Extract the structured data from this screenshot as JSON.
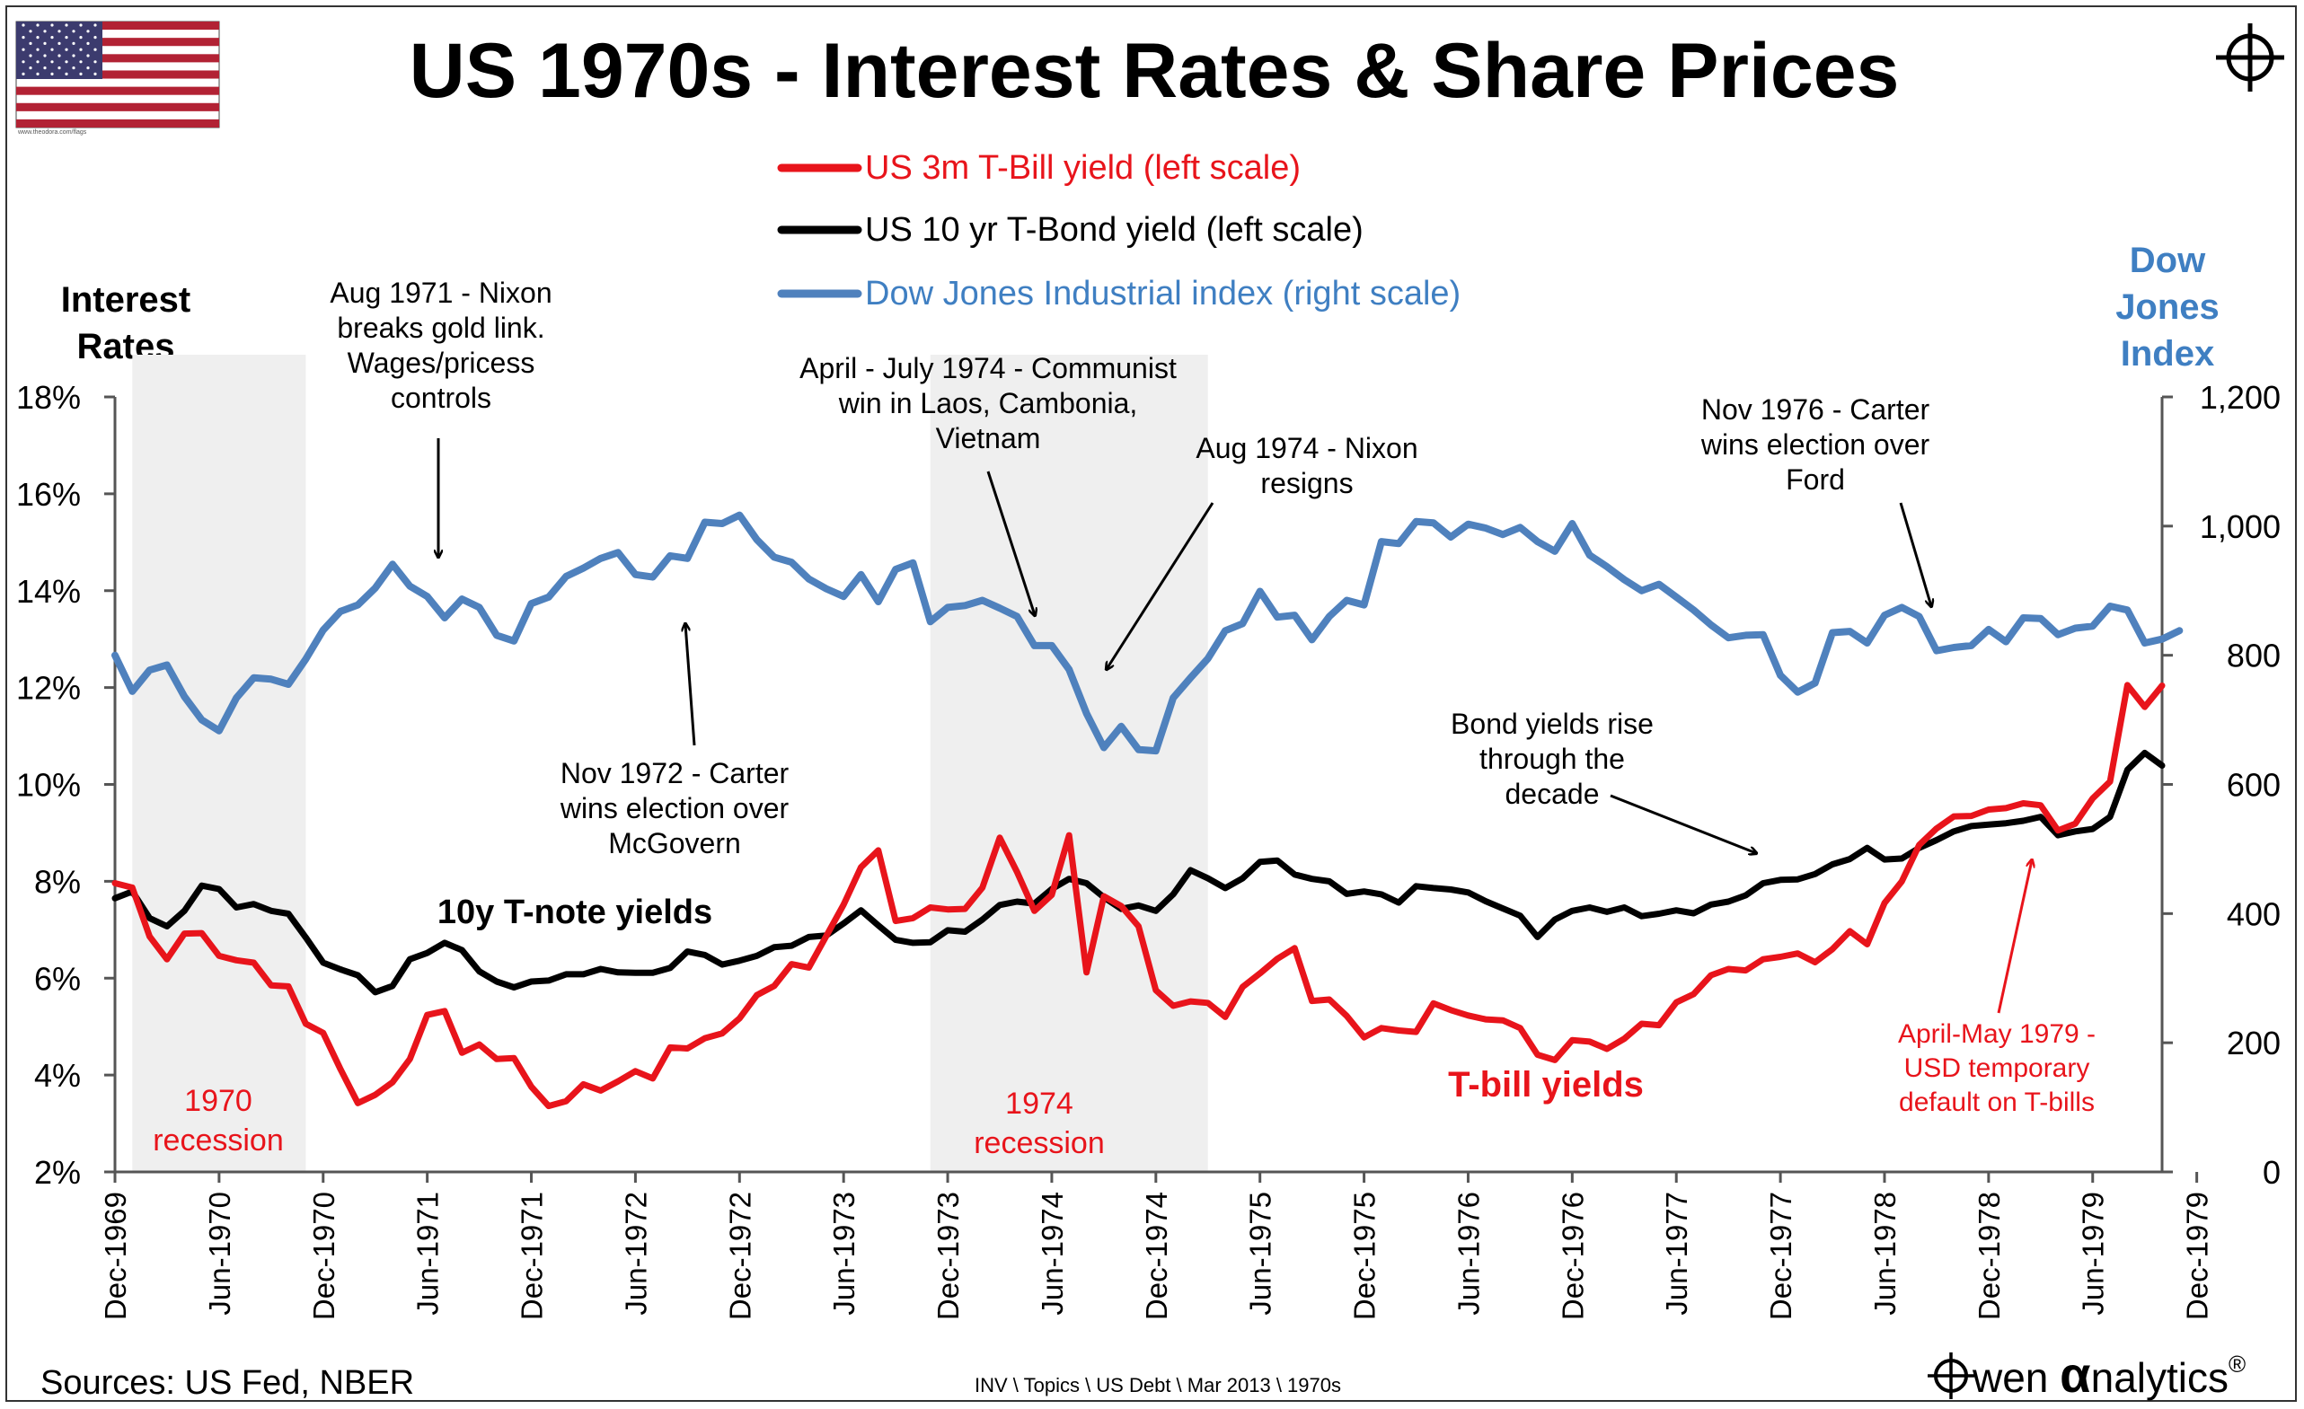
{
  "title": "US 1970s - Interest Rates & Share Prices",
  "left_axis_title": [
    "Interest",
    "Rates"
  ],
  "right_axis_title": [
    "Dow",
    "Jones",
    "Index"
  ],
  "flag_caption": "www.theodora.com/flags",
  "sources": "Sources: US Fed, NBER",
  "file_path": "INV \\ Topics \\ US Debt \\ Mar 2013 \\ 1970s",
  "brand": {
    "prefix": "wen ",
    "alpha": "α",
    "suffix": "nalytics",
    "reg": "®"
  },
  "colors": {
    "tbill": "#e8141b",
    "tbond": "#000000",
    "dow": "#4f81bd",
    "recession": "#efefef",
    "dow_label": "#3f7fc2"
  },
  "annotations": {
    "nixon_gold": [
      "Aug 1971 - Nixon",
      "breaks gold link.",
      "Wages/pricess",
      "controls"
    ],
    "communist": [
      "April - July 1974 -  Communist",
      "win in Laos, Cambonia,",
      "Vietnam"
    ],
    "nixon_resigns": [
      "Aug 1974 - Nixon",
      "resigns"
    ],
    "carter_1976": [
      "Nov 1976 - Carter",
      "wins election over",
      "Ford"
    ],
    "carter_1972": [
      "Nov 1972 - Carter",
      "wins election over",
      "McGovern"
    ],
    "bond_yields": [
      "Bond yields rise",
      "through the",
      "decade"
    ],
    "default_1979": [
      "April-May 1979 -",
      "USD temporary",
      "default on T-bills"
    ],
    "tnote_label": "10y T-note yields",
    "tbill_label": "T-bill yields",
    "recession_1970": [
      "1970",
      "recession"
    ],
    "recession_1974": [
      "1974",
      "recession"
    ]
  },
  "chart_data": {
    "type": "line",
    "title": "US 1970s - Interest Rates & Share Prices",
    "ylabel": "Interest Rates",
    "ylabel_right": "Dow Jones Index",
    "ylim": [
      2,
      18
    ],
    "ylim_right": [
      0,
      1200
    ],
    "y_ticks": [
      "2%",
      "4%",
      "6%",
      "8%",
      "10%",
      "12%",
      "14%",
      "16%",
      "18%"
    ],
    "y_ticks_right": [
      "0",
      "200",
      "400",
      "600",
      "800",
      "1,000",
      "1,200"
    ],
    "x_ticks": [
      "Dec-1969",
      "Jun-1970",
      "Dec-1970",
      "Jun-1971",
      "Dec-1971",
      "Jun-1972",
      "Dec-1972",
      "Jun-1973",
      "Dec-1973",
      "Jun-1974",
      "Dec-1974",
      "Jun-1975",
      "Dec-1975",
      "Jun-1976",
      "Dec-1976",
      "Jun-1977",
      "Dec-1977",
      "Jun-1978",
      "Dec-1978",
      "Jun-1979",
      "Dec-1979"
    ],
    "x_start": "1969-12",
    "recessions": [
      {
        "start": "1970-01",
        "end": "1970-11"
      },
      {
        "start": "1973-11",
        "end": "1975-03"
      }
    ],
    "series": [
      {
        "name": "US 3m T-Bill yield (left scale)",
        "axis": "left",
        "values": [
          7.96,
          7.87,
          6.86,
          6.39,
          6.92,
          6.93,
          6.46,
          6.37,
          6.32,
          5.85,
          5.83,
          5.06,
          4.87,
          4.12,
          3.42,
          3.59,
          3.85,
          4.33,
          5.24,
          5.32,
          4.46,
          4.63,
          4.33,
          4.35,
          3.76,
          3.36,
          3.46,
          3.81,
          3.68,
          3.87,
          4.08,
          3.93,
          4.57,
          4.55,
          4.76,
          4.86,
          5.17,
          5.65,
          5.84,
          6.29,
          6.22,
          6.87,
          7.52,
          8.29,
          8.64,
          7.18,
          7.24,
          7.46,
          7.42,
          7.43,
          7.87,
          8.9,
          8.19,
          7.39,
          7.72,
          8.95,
          6.12,
          7.69,
          7.49,
          7.07,
          5.75,
          5.43,
          5.52,
          5.49,
          5.2,
          5.82,
          6.1,
          6.4,
          6.62,
          5.53,
          5.56,
          5.22,
          4.78,
          4.97,
          4.92,
          4.89,
          5.48,
          5.34,
          5.23,
          5.15,
          5.13,
          4.97,
          4.42,
          4.31,
          4.72,
          4.69,
          4.54,
          4.75,
          5.06,
          5.03,
          5.5,
          5.67,
          6.06,
          6.19,
          6.16,
          6.39,
          6.44,
          6.51,
          6.33,
          6.6,
          6.97,
          6.7,
          7.55,
          8.0,
          8.75,
          9.09,
          9.34,
          9.35,
          9.48,
          9.51,
          9.61,
          9.57,
          9.05,
          9.19,
          9.71,
          10.06,
          12.05,
          11.6,
          12.04
        ]
      },
      {
        "name": "US 10 yr T-Bond yield (left scale)",
        "axis": "left",
        "values": [
          7.65,
          7.79,
          7.24,
          7.07,
          7.39,
          7.91,
          7.84,
          7.46,
          7.53,
          7.39,
          7.33,
          6.84,
          6.32,
          6.18,
          6.06,
          5.71,
          5.84,
          6.39,
          6.52,
          6.73,
          6.58,
          6.14,
          5.93,
          5.81,
          5.93,
          5.95,
          6.08,
          6.08,
          6.19,
          6.12,
          6.11,
          6.11,
          6.21,
          6.55,
          6.48,
          6.28,
          6.36,
          6.46,
          6.64,
          6.67,
          6.85,
          6.88,
          7.13,
          7.4,
          7.09,
          6.79,
          6.73,
          6.74,
          6.99,
          6.96,
          7.21,
          7.51,
          7.58,
          7.54,
          7.84,
          8.05,
          7.96,
          7.67,
          7.43,
          7.5,
          7.39,
          7.73,
          8.23,
          8.06,
          7.86,
          8.06,
          8.4,
          8.43,
          8.14,
          8.05,
          8.0,
          7.74,
          7.79,
          7.73,
          7.56,
          7.9,
          7.86,
          7.83,
          7.77,
          7.59,
          7.44,
          7.29,
          6.85,
          7.21,
          7.39,
          7.46,
          7.37,
          7.46,
          7.28,
          7.33,
          7.4,
          7.34,
          7.52,
          7.58,
          7.71,
          7.96,
          8.03,
          8.04,
          8.15,
          8.35,
          8.46,
          8.69,
          8.45,
          8.47,
          8.69,
          8.85,
          9.03,
          9.14,
          9.17,
          9.2,
          9.25,
          9.33,
          8.95,
          9.03,
          9.08,
          9.33,
          10.3,
          10.65,
          10.39
        ]
      },
      {
        "name": "Dow Jones Industrial index (right scale)",
        "axis": "right",
        "values": [
          800,
          744,
          777,
          785,
          736,
          700,
          683,
          734,
          765,
          763,
          755,
          794,
          839,
          868,
          878,
          904,
          941,
          907,
          891,
          858,
          887,
          874,
          831,
          822,
          880,
          890,
          922,
          935,
          950,
          959,
          925,
          921,
          954,
          950,
          1006,
          1004,
          1017,
          979,
          952,
          944,
          918,
          903,
          891,
          925,
          883,
          933,
          943,
          852,
          874,
          877,
          885,
          873,
          860,
          815,
          815,
          778,
          710,
          657,
          690,
          654,
          652,
          734,
          765,
          795,
          838,
          849,
          899,
          859,
          862,
          824,
          860,
          885,
          878,
          976,
          973,
          1007,
          1005,
          983,
          1003,
          997,
          987,
          998,
          976,
          961,
          1004,
          955,
          937,
          917,
          900,
          910,
          890,
          870,
          847,
          827,
          831,
          832,
          769,
          743,
          757,
          835,
          837,
          819,
          862,
          874,
          860,
          807,
          812,
          815,
          840,
          821,
          858,
          857,
          832,
          842,
          845,
          876,
          870,
          819,
          825,
          838
        ]
      }
    ]
  }
}
